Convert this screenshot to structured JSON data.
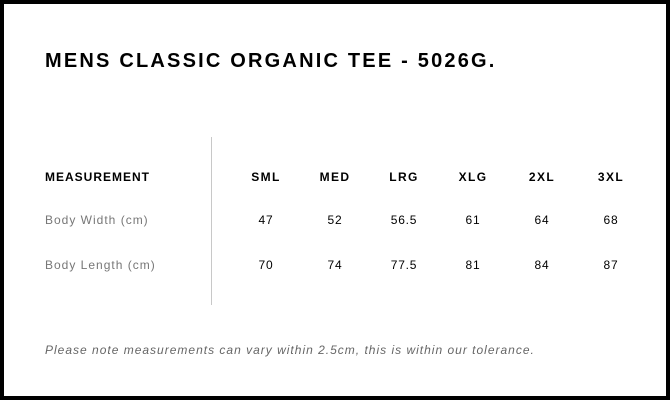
{
  "title": "MENS CLASSIC ORGANIC TEE - 5026G.",
  "table": {
    "header_label": "MEASUREMENT",
    "sizes": [
      "SML",
      "MED",
      "LRG",
      "XLG",
      "2XL",
      "3XL"
    ],
    "rows": [
      {
        "label": "Body Width (cm)",
        "values": [
          "47",
          "52",
          "56.5",
          "61",
          "64",
          "68"
        ]
      },
      {
        "label": "Body Length (cm)",
        "values": [
          "70",
          "74",
          "77.5",
          "81",
          "84",
          "87"
        ]
      }
    ]
  },
  "note": "Please note measurements can vary within 2.5cm, this is within our tolerance."
}
